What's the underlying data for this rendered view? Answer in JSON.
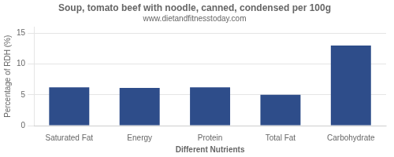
{
  "chart_data": {
    "type": "bar",
    "title": "Soup, tomato beef with noodle, canned, condensed per 100g",
    "subtitle": "www.dietandfitnesstoday.com",
    "categories": [
      "Saturated Fat",
      "Energy",
      "Protein",
      "Total Fat",
      "Carbohydrate"
    ],
    "values": [
      6.2,
      6.1,
      6.2,
      5.0,
      13.0
    ],
    "color": "#2e4d8a",
    "xlabel": "Different Nutrients",
    "ylabel": "Percentage of RDH (%)",
    "ylim": [
      0,
      16
    ],
    "yticks": [
      0,
      5,
      10,
      15
    ],
    "grid": true
  }
}
